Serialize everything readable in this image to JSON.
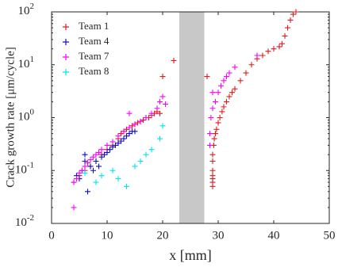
{
  "chart_data": {
    "type": "scatter",
    "xlabel": "x [mm]",
    "ylabel": "Crack growth rate [μm/cycle]",
    "xlim": [
      0,
      50
    ],
    "xticks": [
      0,
      10,
      20,
      30,
      40,
      50
    ],
    "ylim": [
      0.01,
      100
    ],
    "yscale": "log",
    "yticks": [
      {
        "value": 0.01,
        "label": "10",
        "exponent": "-2"
      },
      {
        "value": 0.1,
        "label": "10",
        "exponent": "-1"
      },
      {
        "value": 1,
        "label": "10",
        "exponent": "0"
      },
      {
        "value": 10,
        "label": "10",
        "exponent": "1"
      },
      {
        "value": 100,
        "label": "10",
        "exponent": "2"
      }
    ],
    "shaded_region": {
      "x": [
        23,
        27.5
      ],
      "color": "#c8c8c8"
    },
    "legend": "upper left",
    "series": [
      {
        "name": "Team 1",
        "color": "#e31a1c",
        "x": [
          5,
          6,
          7,
          8,
          9,
          10,
          11,
          12,
          12.5,
          13,
          13.5,
          14,
          14.5,
          15,
          15.5,
          16,
          16.5,
          17,
          17.5,
          18,
          18.5,
          19,
          19.5,
          20,
          22,
          28,
          29,
          29,
          29,
          29,
          29,
          29,
          29,
          29.2,
          29.3,
          29.5,
          29.7,
          30,
          30.3,
          30.7,
          31,
          31.5,
          32,
          32.5,
          33,
          34,
          35,
          36,
          37,
          38,
          39,
          40,
          41,
          41.5,
          42,
          42.5,
          43,
          43.5,
          44
        ],
        "values": [
          0.08,
          0.1,
          0.12,
          0.15,
          0.2,
          0.25,
          0.3,
          0.4,
          0.5,
          0.55,
          0.6,
          0.65,
          0.7,
          0.75,
          0.8,
          0.85,
          0.9,
          1.0,
          1.0,
          1.1,
          1.2,
          1.3,
          1.2,
          6,
          12,
          6,
          0.05,
          0.06,
          0.07,
          0.08,
          0.1,
          0.15,
          0.2,
          0.3,
          0.4,
          0.5,
          0.6,
          0.8,
          1.0,
          1.3,
          1.6,
          2,
          2.5,
          3,
          3.5,
          5,
          7,
          10,
          13,
          15,
          18,
          20,
          22,
          25,
          35,
          50,
          70,
          90,
          100
        ]
      },
      {
        "name": "Team 4",
        "color": "#1010c8",
        "x": [
          4,
          4.5,
          5,
          5.5,
          6,
          6,
          6.5,
          7,
          7.5,
          8,
          8.5,
          9,
          9.5,
          10,
          10.5,
          11,
          11.5,
          12,
          12.5,
          13,
          13.5,
          14,
          14.5,
          15
        ],
        "values": [
          0.06,
          0.08,
          0.07,
          0.1,
          0.15,
          0.2,
          0.04,
          0.12,
          0.1,
          0.15,
          0.12,
          0.18,
          0.2,
          0.22,
          0.25,
          0.28,
          0.3,
          0.33,
          0.36,
          0.4,
          0.45,
          0.5,
          0.55,
          0.55
        ]
      },
      {
        "name": "Team 7",
        "color": "#ff00ff",
        "x": [
          4,
          4,
          4.5,
          5,
          5.5,
          6,
          6.5,
          7,
          7.5,
          8,
          8.5,
          9,
          10,
          11,
          12,
          13,
          14,
          15,
          16,
          17,
          18,
          19,
          19.5,
          20,
          20.5,
          14,
          28.5,
          28.5,
          28.7,
          29,
          29,
          29.5,
          30,
          30.5,
          31,
          31.5,
          32,
          33,
          37
        ],
        "values": [
          0.02,
          0.06,
          0.07,
          0.09,
          0.1,
          0.12,
          0.14,
          0.16,
          0.18,
          0.2,
          0.22,
          0.25,
          0.3,
          0.35,
          0.45,
          0.55,
          0.65,
          0.75,
          0.85,
          1.0,
          1.2,
          1.5,
          2,
          2.5,
          1.8,
          1.2,
          0.3,
          0.5,
          1.0,
          1.5,
          3,
          2,
          3,
          4,
          5,
          6,
          7,
          9,
          15
        ]
      },
      {
        "name": "Team 8",
        "color": "#00e5ee",
        "x": [
          6,
          8,
          9,
          11,
          12,
          13.5,
          15,
          16,
          17,
          18,
          19.5,
          20
        ],
        "values": [
          0.09,
          0.06,
          0.08,
          0.1,
          0.07,
          0.05,
          0.12,
          0.15,
          0.2,
          0.25,
          0.4,
          0.7
        ]
      }
    ]
  }
}
